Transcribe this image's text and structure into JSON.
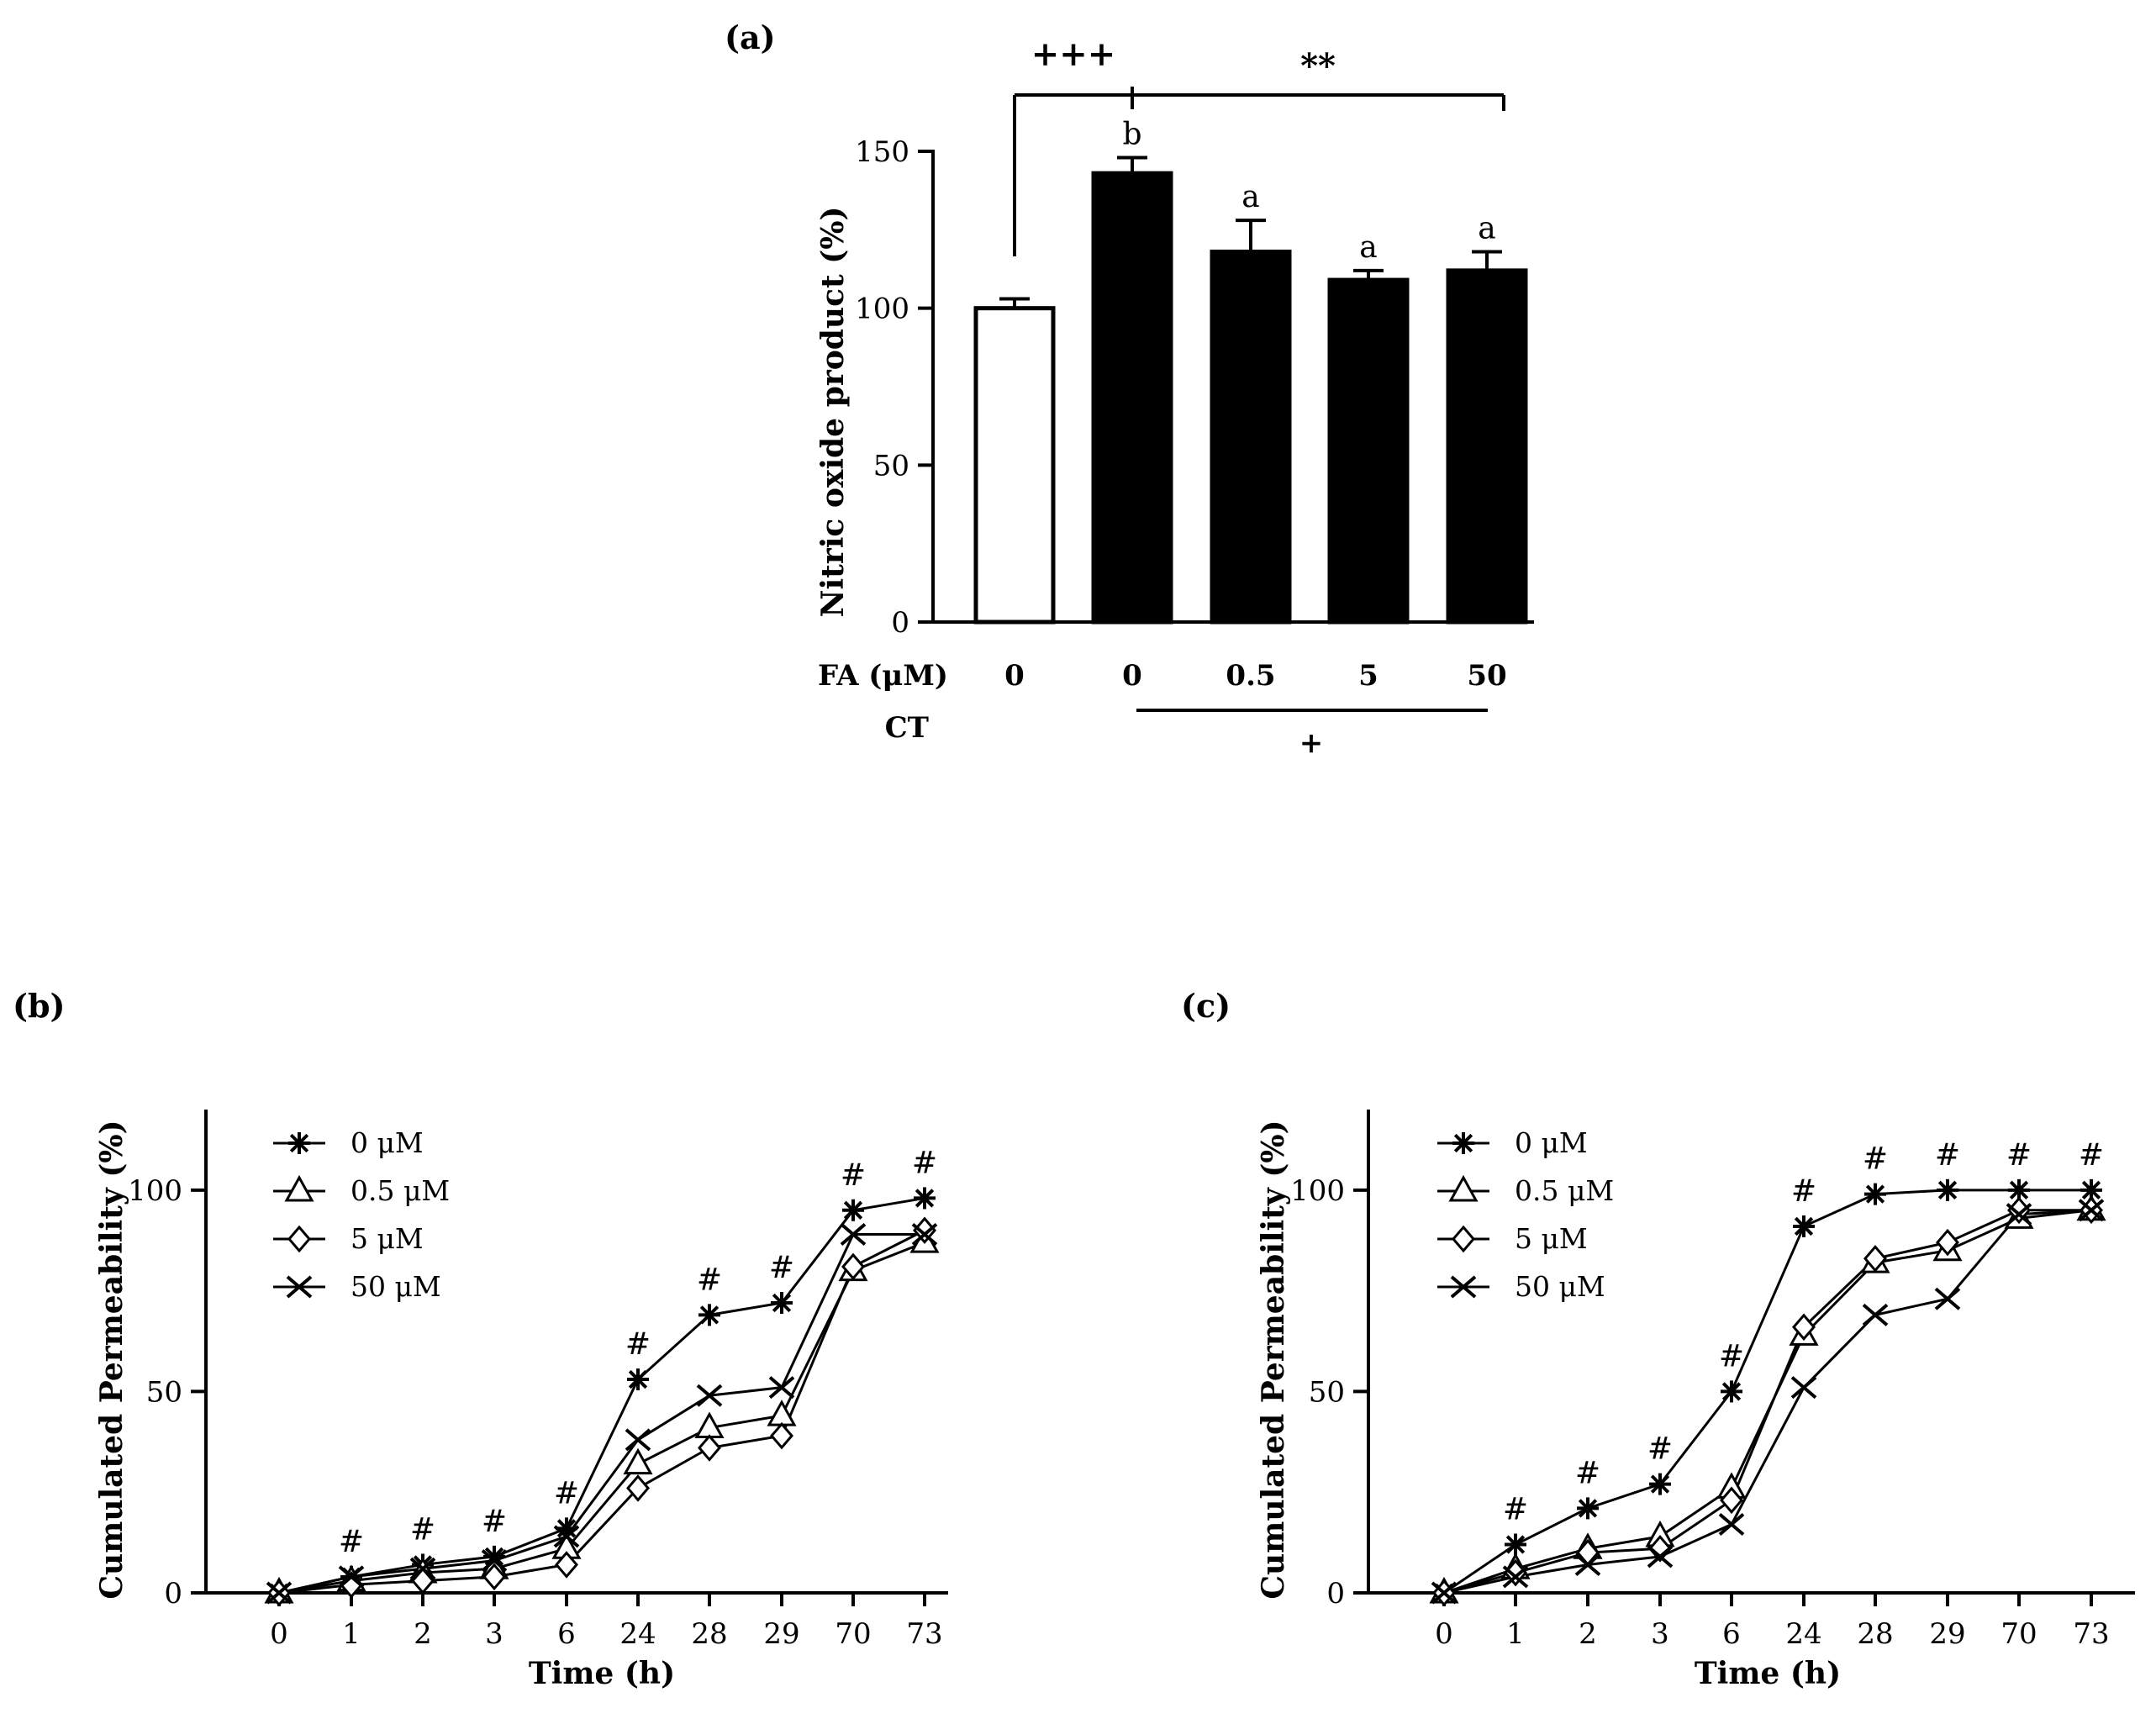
{
  "chart_data": [
    {
      "id": "a",
      "type": "bar",
      "panel_label": "(a)",
      "ylabel": "Nitric oxide product (%)",
      "ylim": [
        0,
        150
      ],
      "yticks": [
        "0",
        "50",
        "100",
        "150"
      ],
      "row1_label": "FA (μM)",
      "row2_label": "CT",
      "ct_sign": "+",
      "categories": [
        "0",
        "0",
        "0.5",
        "5",
        "50"
      ],
      "values": [
        100,
        143,
        118,
        109,
        112
      ],
      "errors": [
        3,
        5,
        10,
        3,
        6
      ],
      "fills": [
        "#ffffff",
        "#000000",
        "#000000",
        "#000000",
        "#000000"
      ],
      "letters": [
        "",
        "b",
        "a",
        "a",
        "a"
      ],
      "sig_left": "+++",
      "sig_right": "**"
    },
    {
      "id": "b",
      "type": "line",
      "panel_label": "(b)",
      "xlabel": "Time (h)",
      "ylabel": "Cumulated Permeability (%)",
      "ylim": [
        0,
        120
      ],
      "yticks": [
        "0",
        "50",
        "100"
      ],
      "x": [
        "0",
        "1",
        "2",
        "3",
        "6",
        "24",
        "28",
        "29",
        "70",
        "73"
      ],
      "series": [
        {
          "name": "0 μM",
          "marker": "star",
          "values": [
            0,
            4,
            7,
            9,
            16,
            53,
            69,
            72,
            95,
            98
          ]
        },
        {
          "name": "0.5 μM",
          "marker": "triangle",
          "values": [
            0,
            3,
            5,
            6,
            11,
            32,
            41,
            44,
            80,
            87
          ]
        },
        {
          "name": "5 μM",
          "marker": "diamond",
          "values": [
            0,
            2,
            3,
            4,
            7,
            26,
            36,
            39,
            81,
            90
          ]
        },
        {
          "name": "50 μM",
          "marker": "x",
          "values": [
            0,
            4,
            6,
            8,
            14,
            38,
            49,
            51,
            89,
            89
          ]
        }
      ],
      "annotations": [
        "",
        "#",
        "#",
        "#",
        "#",
        "#",
        "#",
        "#",
        "#",
        "#"
      ]
    },
    {
      "id": "c",
      "type": "line",
      "panel_label": "(c)",
      "xlabel": "Time (h)",
      "ylabel": "Cumulated Permeability (%)",
      "ylim": [
        0,
        120
      ],
      "yticks": [
        "0",
        "50",
        "100"
      ],
      "x": [
        "0",
        "1",
        "2",
        "3",
        "6",
        "24",
        "28",
        "29",
        "70",
        "73"
      ],
      "series": [
        {
          "name": "0 μM",
          "marker": "star",
          "values": [
            0,
            12,
            21,
            27,
            50,
            91,
            99,
            100,
            100,
            100
          ]
        },
        {
          "name": "0.5 μM",
          "marker": "triangle",
          "values": [
            0,
            6,
            11,
            14,
            26,
            64,
            82,
            85,
            93,
            95
          ]
        },
        {
          "name": "5 μM",
          "marker": "diamond",
          "values": [
            0,
            5,
            10,
            11,
            23,
            66,
            83,
            87,
            95,
            95
          ]
        },
        {
          "name": "50 μM",
          "marker": "x",
          "values": [
            0,
            4,
            7,
            9,
            17,
            51,
            69,
            73,
            94,
            95
          ]
        }
      ],
      "annotations": [
        "",
        "#",
        "#",
        "#",
        "#",
        "#",
        "#",
        "#",
        "#",
        "#"
      ]
    }
  ]
}
